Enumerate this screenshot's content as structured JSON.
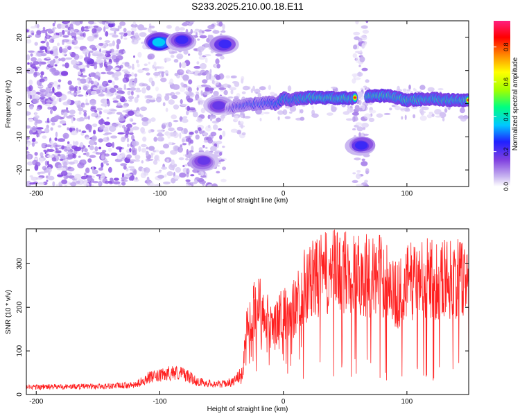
{
  "title": "S233.2025.210.00.18.E11",
  "chart_data": [
    {
      "type": "heatmap",
      "xlabel": "Height of straight line (km)",
      "ylabel": "Frequency (Hz)",
      "xlim": [
        -208,
        150
      ],
      "ylim": [
        -25,
        25
      ],
      "x_ticks": [
        -200,
        -100,
        0,
        100
      ],
      "y_ticks": [
        -20,
        -10,
        0,
        10,
        20
      ],
      "colorbar": {
        "label": "Normalized spectral amplitude",
        "range": [
          0,
          0.95
        ],
        "ticks": [
          0,
          0.2,
          0.4,
          0.6,
          0.8
        ],
        "colors": [
          "#ffffff",
          "#c8b4f0",
          "#8040e0",
          "#2020ff",
          "#00c8ff",
          "#00ff80",
          "#a0ff00",
          "#ffff00",
          "#ff8000",
          "#ff0000",
          "#ff2080"
        ]
      },
      "ridge": {
        "x": [
          -45,
          -40,
          -30,
          -20,
          -10,
          -5,
          0,
          5,
          10,
          20,
          30,
          40,
          50,
          58,
          68,
          75,
          85,
          90,
          100,
          110,
          120,
          130,
          140,
          150
        ],
        "y": [
          -1.5,
          -1.0,
          -0.3,
          0.0,
          0.3,
          -0.2,
          1.8,
          1.0,
          1.5,
          1.8,
          1.8,
          1.7,
          1.6,
          1.6,
          2.2,
          2.3,
          2.5,
          2.0,
          1.0,
          1.3,
          1.5,
          1.2,
          1.0,
          1.0
        ],
        "amplitude": [
          0.35,
          0.5,
          0.55,
          0.6,
          0.65,
          0.7,
          0.8,
          0.75,
          0.8,
          0.85,
          0.9,
          0.9,
          0.9,
          0.85,
          0.9,
          0.9,
          0.9,
          0.85,
          0.9,
          0.85,
          0.85,
          0.85,
          0.85,
          0.85
        ]
      },
      "blobs": [
        {
          "x": -100,
          "y": 18.5,
          "amplitude": 0.45
        },
        {
          "x": -82,
          "y": 19.0,
          "amplitude": 0.3
        },
        {
          "x": -48,
          "y": 18.0,
          "amplitude": 0.3
        },
        {
          "x": -65,
          "y": -17.5,
          "amplitude": 0.25
        },
        {
          "x": 63,
          "y": -12.5,
          "amplitude": 0.3
        },
        {
          "x": -52,
          "y": -0.5,
          "amplitude": 0.25
        }
      ]
    },
    {
      "type": "line",
      "xlabel": "Height of straight line (km)",
      "ylabel": "SNR (10 * v/v)",
      "xlim": [
        -208,
        150
      ],
      "ylim": [
        0,
        380
      ],
      "x_ticks": [
        -200,
        -100,
        0,
        100
      ],
      "y_ticks": [
        0,
        100,
        200,
        300
      ],
      "series": [
        {
          "color": "#ff2020",
          "envelope_x": [
            -208,
            -150,
            -120,
            -110,
            -100,
            -90,
            -80,
            -70,
            -60,
            -50,
            -40,
            -33,
            -30,
            -25,
            -20,
            -10,
            0,
            10,
            15,
            20,
            30,
            40,
            50,
            60,
            70,
            80,
            85,
            90,
            95,
            100,
            110,
            120,
            130,
            140,
            150
          ],
          "envelope_y": [
            20,
            22,
            25,
            45,
            50,
            60,
            55,
            35,
            30,
            28,
            35,
            60,
            180,
            220,
            250,
            200,
            210,
            240,
            290,
            300,
            320,
            330,
            330,
            325,
            320,
            320,
            310,
            265,
            275,
            300,
            320,
            310,
            315,
            310,
            315
          ]
        }
      ]
    }
  ]
}
